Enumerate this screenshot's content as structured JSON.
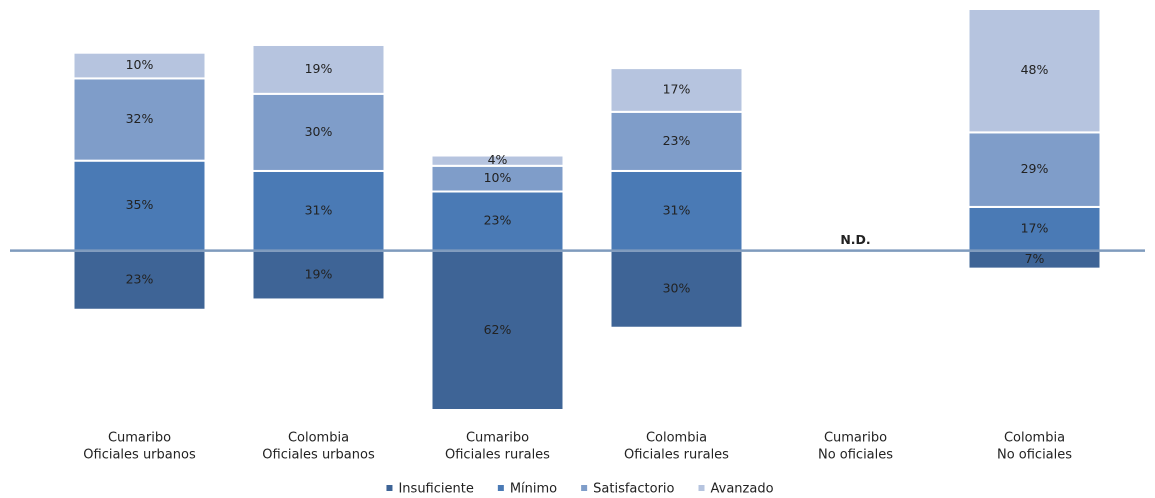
{
  "chart_data": {
    "type": "bar",
    "layout": "diverging",
    "categories": [
      [
        "Cumaribo",
        "Oficiales urbanos"
      ],
      [
        "Colombia",
        "Oficiales urbanos"
      ],
      [
        "Cumaribo",
        "Oficiales rurales"
      ],
      [
        "Colombia",
        "Oficiales rurales"
      ],
      [
        "Cumaribo",
        "No oficiales"
      ],
      [
        "Colombia",
        "No oficiales"
      ]
    ],
    "series": [
      {
        "name": "Insuficiente",
        "color": "#3e6496",
        "values": [
          23,
          19,
          62,
          30,
          null,
          7
        ],
        "value_labels": [
          "23%",
          "19%",
          "62%",
          "30%",
          null,
          "7%"
        ]
      },
      {
        "name": "Mínimo",
        "color": "#4a7ab5",
        "values": [
          35,
          31,
          23,
          31,
          null,
          17
        ],
        "value_labels": [
          "35%",
          "31%",
          "23%",
          "31%",
          null,
          "17%"
        ]
      },
      {
        "name": "Satisfactorio",
        "color": "#7f9dc9",
        "values": [
          32,
          30,
          10,
          23,
          null,
          29
        ],
        "value_labels": [
          "32%",
          "30%",
          "10%",
          "23%",
          null,
          "29%"
        ]
      },
      {
        "name": "Avanzado",
        "color": "#b6c4df",
        "values": [
          10,
          19,
          4,
          17,
          null,
          48
        ],
        "value_labels": [
          "10%",
          "19%",
          "4%",
          "17%",
          null,
          "48%"
        ]
      }
    ],
    "na_label": "N.D.",
    "legend": "bottom"
  }
}
